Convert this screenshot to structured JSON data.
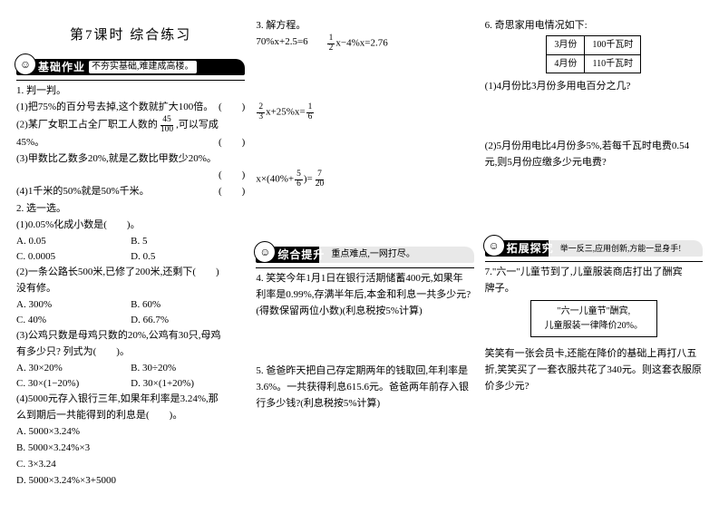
{
  "title": "第7课时 综合练习",
  "sec1": {
    "label": "基础作业",
    "sub": "不夯实基础,难建成高楼。"
  },
  "sec2": {
    "label": "综合提升",
    "sub": "重点难点,一网打尽。"
  },
  "sec3": {
    "label": "拓展探究",
    "sub": "举一反三,应用创新,方能一显身手!"
  },
  "q1h": "1. 判一判。",
  "q1_1a": "(1)把75%的百分号去掉,这个数就扩大100倍。",
  "q1_1b": "(　　)",
  "q1_2a": "(2)某厂女职工占全厂职工人数的",
  "q1_2b": ",可以写成",
  "q1_2c": "45%。",
  "q1_2d": "(　　)",
  "q1_3a": "(3)甲数比乙数多20%,就是乙数比甲数少20%。",
  "q1_3b": "(　　)",
  "q1_4a": "(4)1千米的50%就是50%千米。",
  "q1_4b": "(　　)",
  "q2h": "2. 选一选。",
  "q2_1": "(1)0.05%化成小数是(　　)。",
  "q2_1A": "A. 0.05",
  "q2_1B": "B. 5",
  "q2_1C": "C. 0.0005",
  "q2_1D": "D. 0.5",
  "q2_2a": "(2)一条公路长500米,已修了200米,还剩下(　　)",
  "q2_2b": "没有修。",
  "q2_2A": "A. 300%",
  "q2_2B": "B. 60%",
  "q2_2C": "C. 40%",
  "q2_2D": "D. 66.7%",
  "q2_3a": "(3)公鸡只数是母鸡只数的20%,公鸡有30只,母鸡",
  "q2_3b": "有多少只? 列式为(　　)。",
  "q2_3A": "A. 30×20%",
  "q2_3B": "B. 30÷20%",
  "q2_3C": "C. 30×(1−20%)",
  "q2_3D": "D. 30×(1+20%)",
  "q2_4a": "(4)5000元存入银行三年,如果年利率是3.24%,那",
  "q2_4b": "么到期后一共能得到的利息是(　　)。",
  "q2_4A": "A. 5000×3.24%",
  "q2_4B": "B. 5000×3.24%×3",
  "q2_4C": "C. 3×3.24",
  "q2_4D": "D. 5000×3.24%×3+5000",
  "q3h": "3. 解方程。",
  "q3_1": "70%x+2.5=6",
  "q3_2a": "x−4%x=2.76",
  "q3_3a": "x+25%x=",
  "q3_4a": "x×(40%+",
  "q3_4b": ")=",
  "q4a": "4. 笑笑今年1月1日在银行活期储蓄400元,如果年",
  "q4b": "利率是0.99%,存满半年后,本金和利息一共多少元?",
  "q4c": "(得数保留两位小数)(利息税按5%计算)",
  "q5a": "5. 爸爸昨天把自己存定期两年的钱取回,年利率是",
  "q5b": "3.6%。一共获得利息615.6元。爸爸两年前存入银",
  "q5c": "行多少钱?(利息税按5%计算)",
  "q6h": "6. 奇思家用电情况如下:",
  "t": {
    "r1c1": "3月份",
    "r1c2": "100千瓦时",
    "r2c1": "4月份",
    "r2c2": "110千瓦时"
  },
  "q6_1": "(1)4月份比3月份多用电百分之几?",
  "q6_2a": "(2)5月份用电比4月份多5%,若每千瓦时电费0.54",
  "q6_2b": "元,则5月份应缴多少元电费?",
  "q7a": "7.\"六一\"儿童节到了,儿童服装商店打出了酬宾",
  "q7b": "牌子。",
  "box1": "\"六一儿童节\"酬宾,",
  "box2": "儿童服装一律降价20%。",
  "q7c": "笑笑有一张会员卡,还能在降价的基础上再打八五",
  "q7d": "折,笑笑买了一套衣服共花了340元。则这套衣服原",
  "q7e": "价多少元?",
  "f45": {
    "n": "45",
    "d": "100"
  },
  "f12": {
    "n": "1",
    "d": "2"
  },
  "f23": {
    "n": "2",
    "d": "3"
  },
  "f16": {
    "n": "1",
    "d": "6"
  },
  "f56": {
    "n": "5",
    "d": "6"
  },
  "f720": {
    "n": "7",
    "d": "20"
  }
}
